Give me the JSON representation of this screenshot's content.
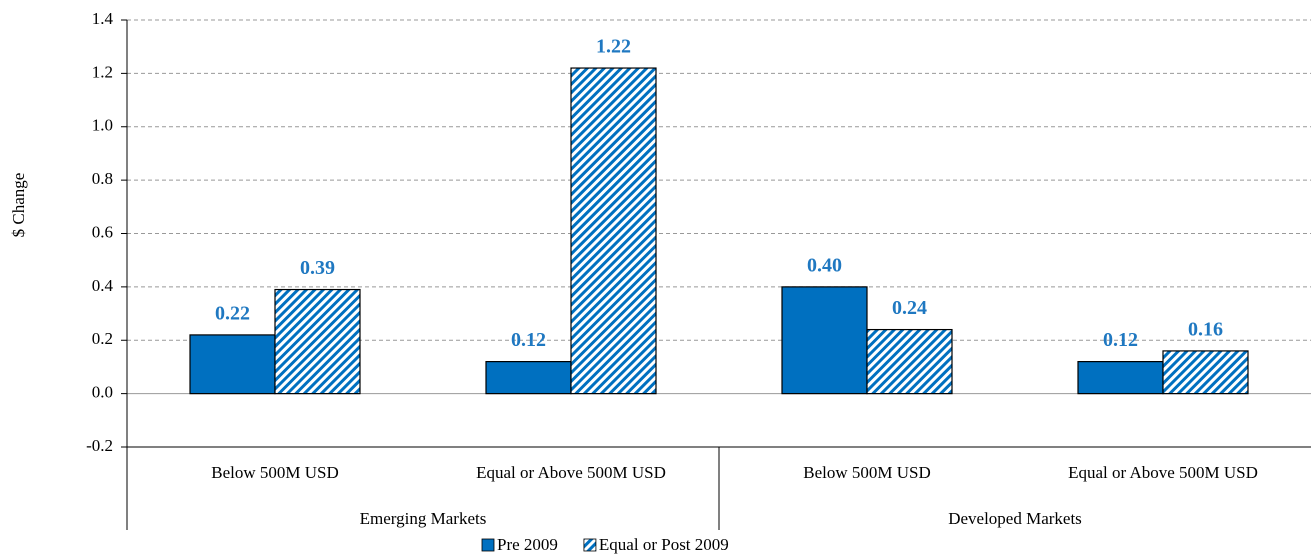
{
  "chart_data": {
    "type": "bar",
    "y_label": "$ Change",
    "categories": [
      "Below 500M USD",
      "Equal or Above 500M USD",
      "Below 500M USD",
      "Equal or Above 500M USD"
    ],
    "category_groups": [
      "Emerging Markets",
      "Developed Markets"
    ],
    "series": [
      {
        "name": "Pre 2009",
        "color": "#0070c0",
        "fill": "solid",
        "values": [
          0.22,
          0.12,
          0.4,
          0.12
        ],
        "value_labels": [
          "0.22",
          "0.12",
          "0.40",
          "0.12"
        ]
      },
      {
        "name": "Equal or Post 2009",
        "color": "#0070c0",
        "fill": "hatch",
        "values": [
          0.39,
          1.22,
          0.24,
          0.16
        ],
        "value_labels": [
          "0.39",
          "1.22",
          "0.24",
          "0.16"
        ]
      }
    ],
    "ylim": [
      -0.2,
      1.4
    ],
    "yticks": [
      -0.2,
      {
        "value": 0,
        "label": "0.0"
      },
      0.2,
      0.4,
      0.6,
      0.8,
      {
        "value": 1,
        "label": "1.0"
      },
      1.2,
      1.4
    ],
    "grid": true,
    "legend": "bottom"
  }
}
